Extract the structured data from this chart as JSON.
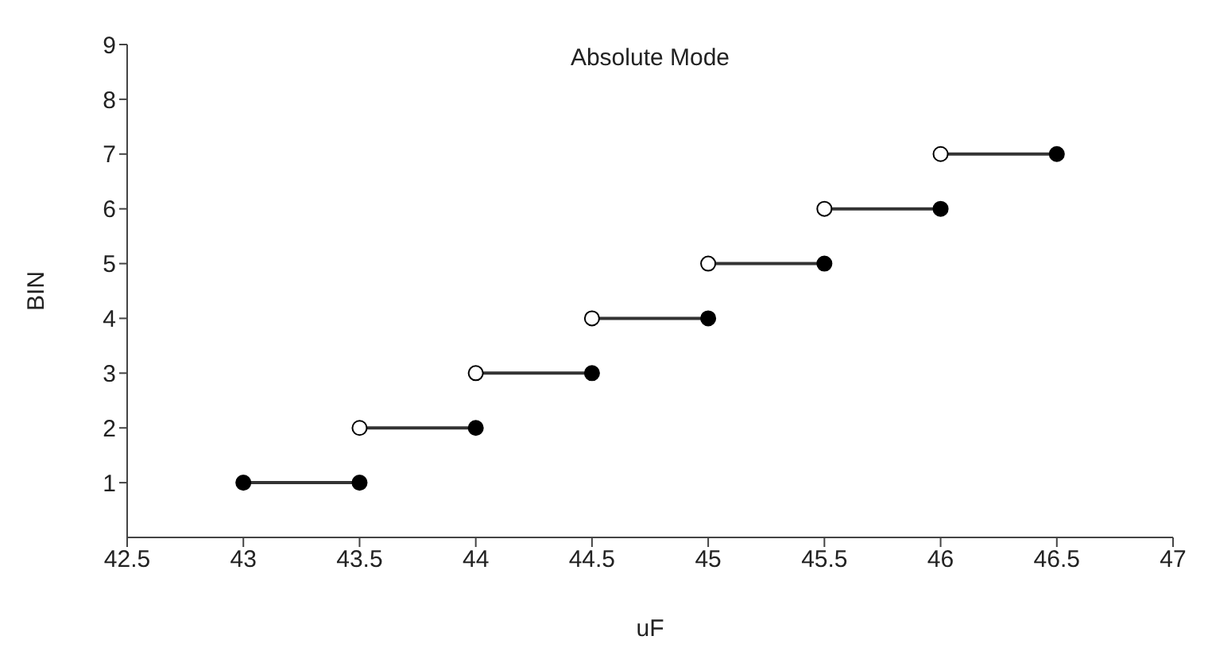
{
  "chart_data": {
    "type": "line",
    "title": "Absolute Mode",
    "xlabel": "uF",
    "ylabel": "BIN",
    "xlim": [
      42.5,
      47
    ],
    "xticks": [
      42.5,
      43,
      43.5,
      44,
      44.5,
      45,
      45.5,
      46,
      46.5,
      47
    ],
    "ylim": [
      0,
      9
    ],
    "yticks": [
      1,
      2,
      3,
      4,
      5,
      6,
      7,
      8,
      9
    ],
    "grid": false,
    "series": [
      {
        "marker": "none",
        "color": "#333333",
        "x": [
          43,
          43.5
        ],
        "values": [
          1,
          1
        ]
      },
      {
        "marker": "none",
        "color": "#333333",
        "x": [
          43.5,
          44
        ],
        "values": [
          2,
          2
        ]
      },
      {
        "marker": "none",
        "color": "#333333",
        "x": [
          44,
          44.5
        ],
        "values": [
          3,
          3
        ]
      },
      {
        "marker": "none",
        "color": "#333333",
        "x": [
          44.5,
          45
        ],
        "values": [
          4,
          4
        ]
      },
      {
        "marker": "none",
        "color": "#333333",
        "x": [
          45,
          45.5
        ],
        "values": [
          5,
          5
        ]
      },
      {
        "marker": "none",
        "color": "#333333",
        "x": [
          45.5,
          46
        ],
        "values": [
          6,
          6
        ]
      },
      {
        "marker": "none",
        "color": "#333333",
        "x": [
          46,
          46.5
        ],
        "values": [
          7,
          7
        ]
      },
      {
        "type": "scatter",
        "marker": "circle",
        "color": "#000000",
        "x": [
          43,
          43.5,
          44,
          44.5,
          45,
          45.5,
          46,
          46.5
        ],
        "values": [
          1,
          1,
          2,
          3,
          4,
          5,
          6,
          7
        ]
      },
      {
        "type": "scatter",
        "marker": "circle",
        "color": "#ffffff",
        "x": [
          43.5,
          44,
          44.5,
          45,
          45.5,
          46
        ],
        "values": [
          2,
          3,
          4,
          5,
          6,
          7
        ]
      }
    ]
  }
}
